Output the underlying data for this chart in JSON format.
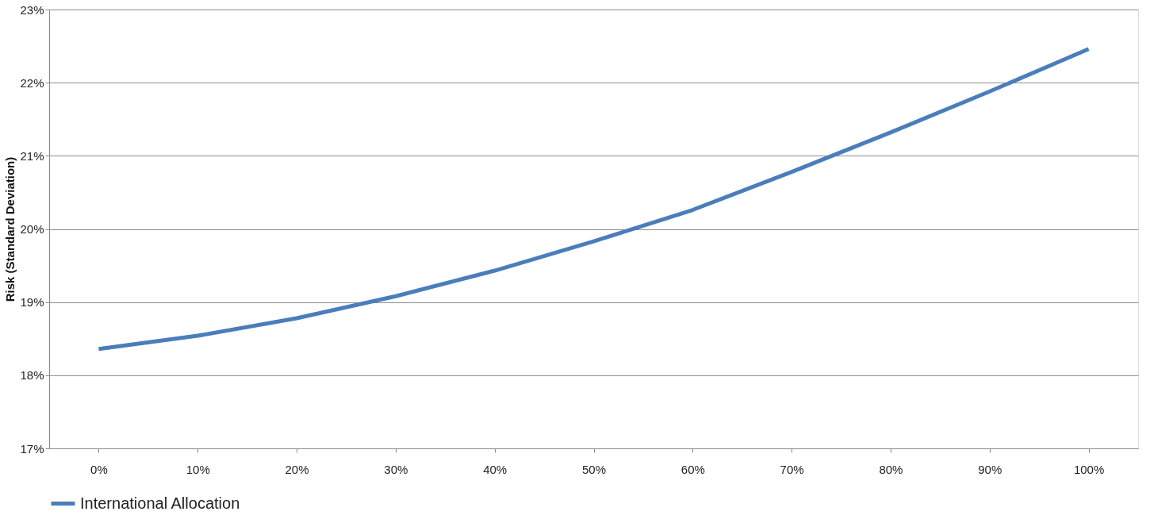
{
  "chart_data": {
    "type": "line",
    "ylabel": "Risk (Standard Deviation)",
    "categories": [
      "0%",
      "10%",
      "20%",
      "30%",
      "40%",
      "50%",
      "60%",
      "70%",
      "80%",
      "90%",
      "100%"
    ],
    "series": [
      {
        "name": "International Allocation",
        "color": "#4a7ebb",
        "values": [
          18.36,
          18.54,
          18.78,
          19.08,
          19.43,
          19.83,
          20.26,
          20.78,
          21.32,
          21.88,
          22.46
        ]
      }
    ],
    "ylim": [
      17,
      23
    ],
    "yticks": [
      {
        "value": 17,
        "label": "17%"
      },
      {
        "value": 18,
        "label": "18%"
      },
      {
        "value": 19,
        "label": "19%"
      },
      {
        "value": 20,
        "label": "20%"
      },
      {
        "value": 21,
        "label": "21%"
      },
      {
        "value": 22,
        "label": "22%"
      },
      {
        "value": 23,
        "label": "23%"
      }
    ],
    "grid": "y",
    "legend": "bottom",
    "marker": "none",
    "line_style": "solid"
  }
}
